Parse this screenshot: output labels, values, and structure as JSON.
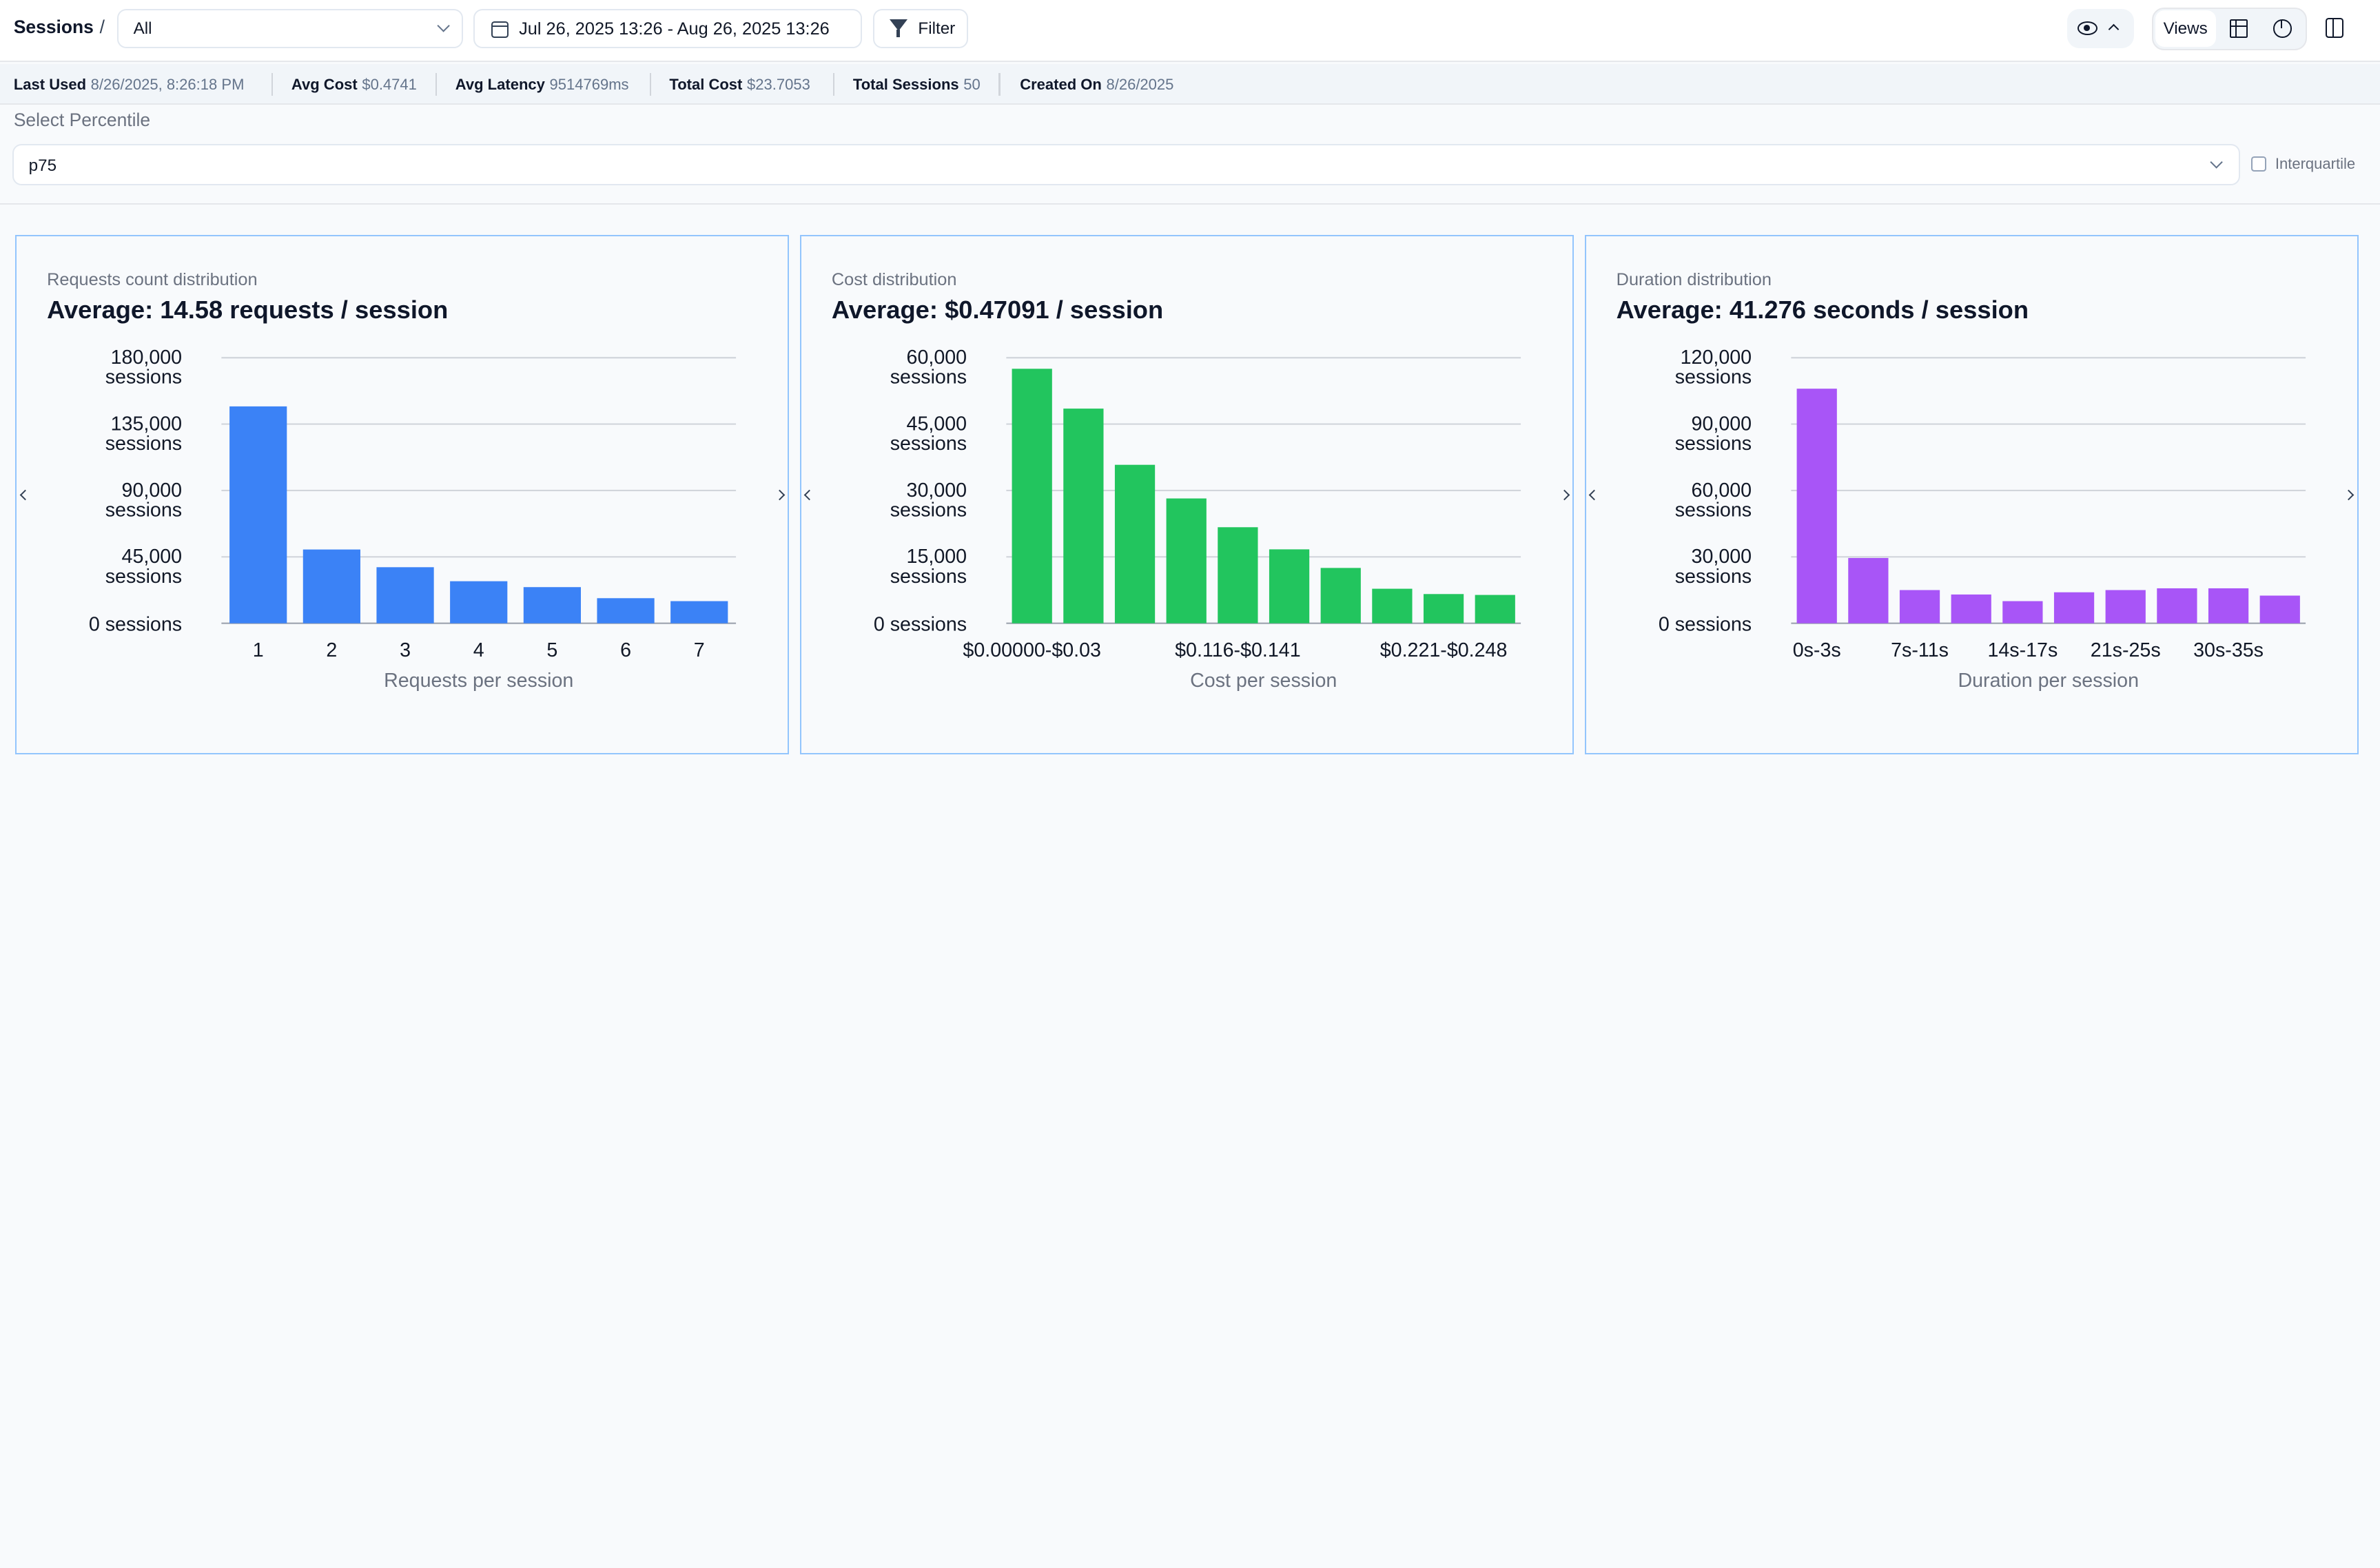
{
  "header": {
    "breadcrumb": "Sessions",
    "breadcrumb_separator": "/",
    "session_filter_value": "All",
    "date_range": "Jul 26, 2025 13:26 - Aug 26, 2025 13:26",
    "filter_label": "Filter",
    "views_label": "Views"
  },
  "stats": [
    {
      "label": "Last Used",
      "value": "8/26/2025, 8:26:18 PM"
    },
    {
      "label": "Avg Cost",
      "value": "$0.4741"
    },
    {
      "label": "Avg Latency",
      "value": "9514769ms"
    },
    {
      "label": "Total Cost",
      "value": "$23.7053"
    },
    {
      "label": "Total Sessions",
      "value": "50"
    },
    {
      "label": "Created On",
      "value": "8/26/2025"
    }
  ],
  "percentile": {
    "label": "Select Percentile",
    "value": "p75",
    "interquartile_label": "Interquartile",
    "interquartile_checked": false
  },
  "chart_data": [
    {
      "type": "bar",
      "card_title": "Requests count distribution",
      "average_text": "Average: 14.58 requests / session",
      "xlabel": "Requests per session",
      "color": "#3b82f6",
      "categories": [
        "1",
        "2",
        "3",
        "4",
        "5",
        "6",
        "7"
      ],
      "tick_labels": [
        "1",
        "2",
        "3",
        "4",
        "5",
        "6",
        "7"
      ],
      "values": [
        147000,
        50000,
        38000,
        28500,
        24500,
        17000,
        15000
      ],
      "ylim": [
        0,
        180000
      ],
      "yticks": [
        0,
        45000,
        90000,
        135000,
        180000
      ],
      "ytick_labels": [
        [
          "0 sessions"
        ],
        [
          "45,000",
          "sessions"
        ],
        [
          "90,000",
          "sessions"
        ],
        [
          "135,000",
          "sessions"
        ],
        [
          "180,000",
          "sessions"
        ]
      ],
      "grid": true
    },
    {
      "type": "bar",
      "card_title": "Cost distribution",
      "average_text": "Average: $0.47091 / session",
      "xlabel": "Cost per session",
      "color": "#22c55e",
      "categories": [
        "$0.00000-$0.03",
        "",
        "",
        "",
        "$0.116-$0.141",
        "",
        "",
        "",
        "$0.221-$0.248",
        ""
      ],
      "tick_labels": [
        "$0.00000-$0.03",
        "$0.116-$0.141",
        "$0.221-$0.248"
      ],
      "values": [
        57500,
        48500,
        35800,
        28200,
        21700,
        16700,
        12500,
        7800,
        6600,
        6400
      ],
      "ylim": [
        0,
        60000
      ],
      "yticks": [
        0,
        15000,
        30000,
        45000,
        60000
      ],
      "ytick_labels": [
        [
          "0 sessions"
        ],
        [
          "15,000",
          "sessions"
        ],
        [
          "30,000",
          "sessions"
        ],
        [
          "45,000",
          "sessions"
        ],
        [
          "60,000",
          "sessions"
        ]
      ],
      "grid": true
    },
    {
      "type": "bar",
      "card_title": "Duration distribution",
      "average_text": "Average: 41.276 seconds / session",
      "xlabel": "Duration per session",
      "color": "#a855f7",
      "categories": [
        "0s-3s",
        "",
        "7s-11s",
        "",
        "14s-17s",
        "",
        "21s-25s",
        "",
        "30s-35s",
        ""
      ],
      "tick_labels": [
        "0s-3s",
        "7s-11s",
        "14s-17s",
        "21s-25s",
        "30s-35s"
      ],
      "values": [
        106000,
        29500,
        15000,
        13000,
        10000,
        14000,
        15000,
        15800,
        15800,
        12500
      ],
      "ylim": [
        0,
        120000
      ],
      "yticks": [
        0,
        30000,
        60000,
        90000,
        120000
      ],
      "ytick_labels": [
        [
          "0 sessions"
        ],
        [
          "30,000",
          "sessions"
        ],
        [
          "60,000",
          "sessions"
        ],
        [
          "90,000",
          "sessions"
        ],
        [
          "120,000",
          "sessions"
        ]
      ],
      "grid": true
    }
  ]
}
